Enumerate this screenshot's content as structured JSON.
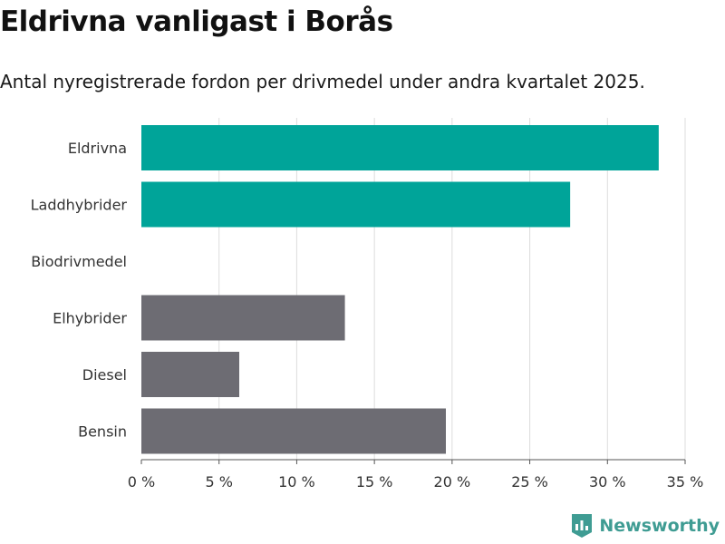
{
  "chart_data": {
    "type": "bar",
    "orientation": "horizontal",
    "title": "Eldrivna vanligast i Borås",
    "subtitle": "Antal nyregistrerade fordon per drivmedel under andra kvartalet 2025.",
    "categories": [
      "Eldrivna",
      "Laddhybrider",
      "Biodrivmedel",
      "Elhybrider",
      "Diesel",
      "Bensin"
    ],
    "values": [
      33.3,
      27.6,
      0,
      13.1,
      6.3,
      19.6
    ],
    "bar_colors": [
      "#00a499",
      "#00a499",
      "#6d6c73",
      "#6d6c73",
      "#6d6c73",
      "#6d6c73"
    ],
    "xlim": [
      0,
      35
    ],
    "xticks": [
      0,
      5,
      10,
      15,
      20,
      25,
      30,
      35
    ],
    "xtick_labels": [
      "0 %",
      "5 %",
      "10 %",
      "15 %",
      "20 %",
      "25 %",
      "30 %",
      "35 %"
    ],
    "grid": "vertical",
    "xlabel": "",
    "ylabel": ""
  },
  "brand": {
    "name": "Newsworthy",
    "logo_icon": "newsworthy-bar-chart-icon",
    "color": "#3f9c93"
  }
}
